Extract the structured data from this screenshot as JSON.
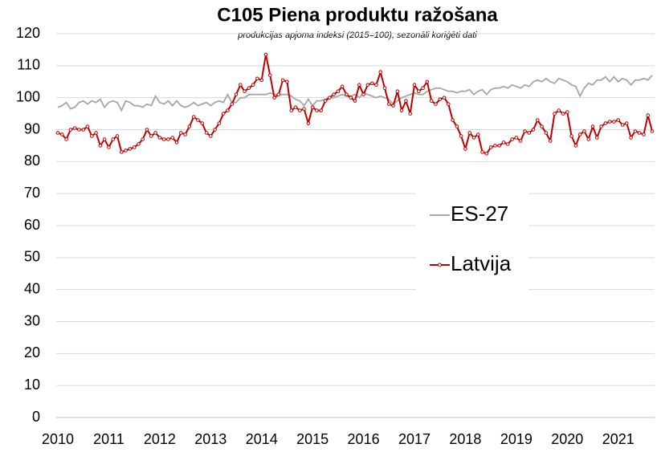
{
  "chart_data": {
    "type": "line",
    "title": "C105 Piena produktu ražošana",
    "subtitle": "produkcijas apjoma indeksi (2015=100), sezonāli koriģēti dati",
    "categories": [
      "2010",
      null,
      null,
      null,
      null,
      null,
      null,
      null,
      null,
      null,
      null,
      null,
      "2011",
      null,
      null,
      null,
      null,
      null,
      null,
      null,
      null,
      null,
      null,
      null,
      "2012",
      null,
      null,
      null,
      null,
      null,
      null,
      null,
      null,
      null,
      null,
      null,
      "2013",
      null,
      null,
      null,
      null,
      null,
      null,
      null,
      null,
      null,
      null,
      null,
      "2014",
      null,
      null,
      null,
      null,
      null,
      null,
      null,
      null,
      null,
      null,
      null,
      "2015",
      null,
      null,
      null,
      null,
      null,
      null,
      null,
      null,
      null,
      null,
      null,
      "2016",
      null,
      null,
      null,
      null,
      null,
      null,
      null,
      null,
      null,
      null,
      null,
      "2017",
      null,
      null,
      null,
      null,
      null,
      null,
      null,
      null,
      null,
      null,
      null,
      "2018",
      null,
      null,
      null,
      null,
      null,
      null,
      null,
      null,
      null,
      null,
      null,
      "2019",
      null,
      null,
      null,
      null,
      null,
      null,
      null,
      null,
      null,
      null,
      null,
      "2020",
      null,
      null,
      null,
      null,
      null,
      null,
      null,
      null,
      null,
      null,
      null,
      "2021",
      null,
      null,
      null,
      null,
      null,
      null,
      null,
      null
    ],
    "series": [
      {
        "name": "ES-27",
        "color": "#a6a6a6",
        "marker": false,
        "values": [
          97,
          97.5,
          98.5,
          96.5,
          97,
          98.5,
          99,
          98,
          99,
          98.5,
          99.5,
          97,
          98.5,
          99,
          98.5,
          96,
          99,
          98.5,
          97.5,
          97.5,
          97,
          98,
          97.5,
          100.5,
          98.5,
          98,
          99,
          97.5,
          99,
          97.5,
          97,
          97.5,
          98.5,
          97.5,
          98,
          98.5,
          97.5,
          98.5,
          99,
          98.5,
          101,
          98.5,
          98.5,
          100,
          100,
          101,
          101,
          101,
          101,
          101,
          101.5,
          101,
          101,
          101,
          101,
          100.5,
          99.5,
          99,
          97.5,
          99.5,
          97.5,
          99,
          99,
          99.5,
          100,
          100,
          100.5,
          101,
          100.5,
          100.5,
          101,
          100,
          101.5,
          101,
          100.5,
          100,
          100.5,
          100,
          99.5,
          98,
          99,
          100,
          100.5,
          101,
          101.5,
          101,
          101,
          102,
          102.5,
          103,
          103,
          102.5,
          102,
          102,
          101.5,
          102,
          102,
          102.5,
          101,
          102,
          102.5,
          101,
          102.5,
          103,
          103,
          103.5,
          103,
          104,
          103.5,
          103,
          104,
          103.5,
          105,
          105.5,
          105,
          106,
          105,
          104.5,
          106,
          105.5,
          105,
          104,
          103.5,
          100.5,
          103,
          104.5,
          104,
          105.5,
          105.5,
          106.5,
          105,
          106.5,
          105,
          106,
          105.5,
          104,
          105.5,
          105.5,
          106,
          105.5,
          107
        ]
      },
      {
        "name": "Latvija",
        "color": "#c00000",
        "marker": true,
        "values": [
          89,
          88.5,
          87,
          90,
          90.5,
          90,
          90,
          91,
          88,
          89,
          85,
          87,
          84.5,
          87,
          88,
          83,
          83.5,
          84,
          84.5,
          85.5,
          87,
          90,
          88,
          89,
          87.5,
          87,
          87,
          87.5,
          86,
          89,
          88.5,
          91,
          94,
          93,
          92,
          89,
          88,
          90,
          92,
          95,
          96,
          98,
          101,
          104,
          102,
          103,
          104,
          106,
          105.5,
          113.5,
          107,
          100,
          101,
          105.5,
          105,
          96,
          97,
          96,
          96.5,
          92,
          97,
          96,
          96,
          99,
          100,
          101,
          102,
          103.5,
          101,
          100,
          99,
          104,
          101,
          104,
          104.5,
          104,
          108,
          103,
          98,
          97.5,
          102,
          96,
          99,
          95,
          104,
          102,
          103,
          105,
          99,
          98,
          99.5,
          100,
          98,
          93,
          91,
          88,
          84,
          89,
          87.5,
          88.5,
          83,
          82.5,
          84.5,
          85,
          85,
          86,
          85.5,
          87,
          87.5,
          86.5,
          89.5,
          89,
          90,
          93,
          91,
          89,
          86.5,
          95,
          96,
          95,
          95.5,
          88,
          85,
          88.5,
          89.5,
          87,
          91,
          87.5,
          91,
          92,
          92.5,
          92.5,
          93,
          91.5,
          92,
          87.5,
          89.5,
          89,
          88.5,
          94.5,
          89.5
        ]
      }
    ],
    "ylim": [
      0,
      120
    ],
    "yticks": [
      0,
      10,
      20,
      30,
      40,
      50,
      60,
      70,
      80,
      90,
      100,
      110,
      120
    ],
    "grid": true
  }
}
